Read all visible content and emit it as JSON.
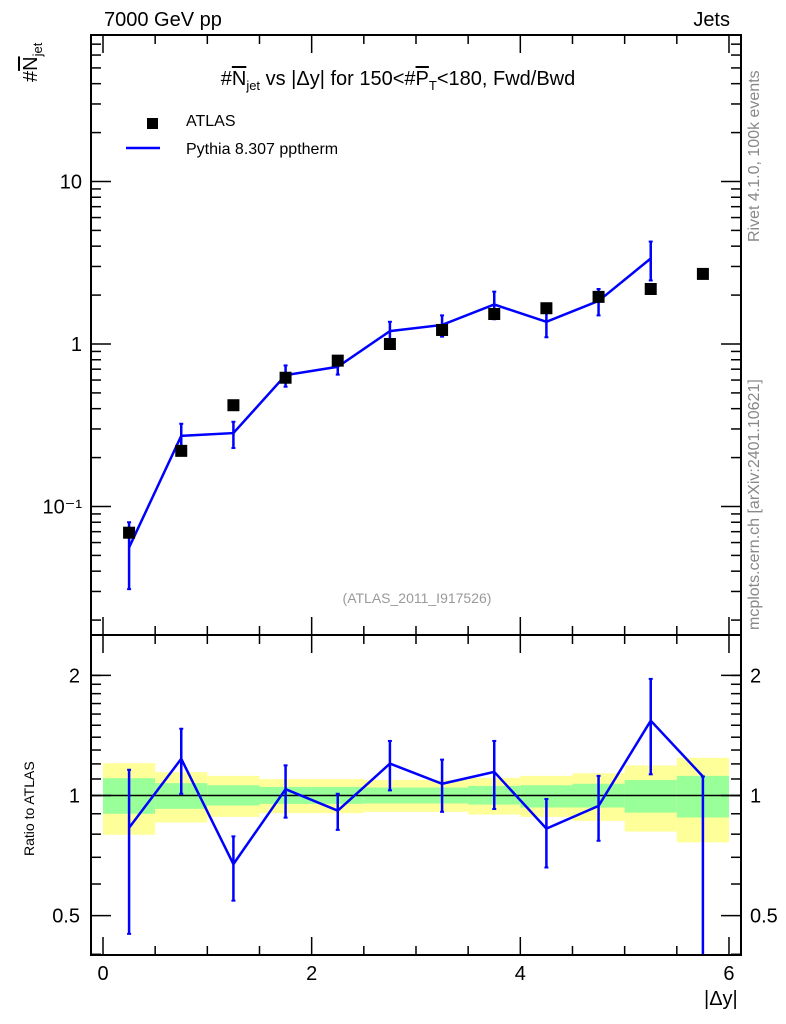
{
  "header": {
    "left": "7000 GeV pp",
    "right": "Jets"
  },
  "title_parts": [
    "#",
    "N",
    "jet",
    " vs |Δy| for 150<#",
    "P",
    "T",
    "<180, Fwd/Bwd"
  ],
  "ylabel_parts": [
    "#",
    "N",
    "jet"
  ],
  "side_text": {
    "rivet": "Rivet 4.1.0,  100k events",
    "mcplots": "mcplots.cern.ch [arXiv:2401.10621]"
  },
  "watermark": "(ATLAS_2011_I917526)",
  "legend": [
    {
      "label": "ATLAS",
      "marker": "square",
      "color": "#000000"
    },
    {
      "label": "Pythia 8.307 pptherm",
      "marker": "line",
      "color": "#0000ff"
    }
  ],
  "chart_data": [
    {
      "type": "scatter",
      "panel": "main",
      "yscale": "log",
      "xlim": [
        -0.12,
        6.12
      ],
      "ylim": [
        0.0163,
        80
      ],
      "x_ticks": [
        "0",
        "2",
        "4",
        "6"
      ],
      "y_ticks": [
        {
          "value": 0.1,
          "label": "10⁻¹"
        },
        {
          "value": 1,
          "label": "1"
        },
        {
          "value": 10,
          "label": "10"
        }
      ],
      "x": [
        0.25,
        0.75,
        1.25,
        1.75,
        2.25,
        2.75,
        3.25,
        3.75,
        4.25,
        4.75,
        5.25,
        5.75
      ],
      "series": [
        {
          "name": "ATLAS",
          "values": [
            0.069,
            0.22,
            0.42,
            0.62,
            0.79,
            1.0,
            1.22,
            1.53,
            1.66,
            1.95,
            2.18,
            2.7
          ]
        },
        {
          "name": "Pythia 8.307 pptherm",
          "values": [
            0.056,
            0.272,
            0.283,
            0.643,
            0.724,
            1.2,
            1.31,
            1.75,
            1.37,
            1.84,
            3.36,
            null
          ],
          "err_low": [
            0.031,
            0.222,
            0.229,
            0.546,
            0.648,
            1.03,
            1.11,
            1.42,
            1.1,
            1.5,
            2.46,
            null
          ],
          "err_high": [
            0.08,
            0.323,
            0.332,
            0.738,
            0.8,
            1.37,
            1.5,
            2.1,
            1.63,
            2.18,
            4.27,
            null
          ]
        }
      ]
    },
    {
      "type": "line",
      "panel": "ratio",
      "yscale": "log",
      "ylabel": "Ratio to ATLAS",
      "xlabel": "|Δy|",
      "ylim": [
        0.397,
        2.52
      ],
      "y_ticks": [
        {
          "value": 0.5,
          "label": "0.5"
        },
        {
          "value": 1,
          "label": "1"
        },
        {
          "value": 2,
          "label": "2"
        }
      ],
      "x": [
        0.25,
        0.75,
        1.25,
        1.75,
        2.25,
        2.75,
        3.25,
        3.75,
        4.25,
        4.75,
        5.25,
        5.75
      ],
      "ratio": [
        0.83,
        1.236,
        0.673,
        1.037,
        0.916,
        1.202,
        1.07,
        1.146,
        0.826,
        0.942,
        1.54,
        1.116
      ],
      "ratio_err_low": [
        0.45,
        1.01,
        0.545,
        0.88,
        0.82,
        1.03,
        0.91,
        0.925,
        0.66,
        0.77,
        1.13,
        0.3
      ],
      "ratio_err_high": [
        1.16,
        1.47,
        0.79,
        1.19,
        1.01,
        1.37,
        1.23,
        1.37,
        0.98,
        1.12,
        1.96,
        1.116
      ],
      "band_yellow_low": [
        0.797,
        0.856,
        0.884,
        0.903,
        0.903,
        0.91,
        0.91,
        0.896,
        0.884,
        0.864,
        0.812,
        0.763
      ],
      "band_yellow_high": [
        1.205,
        1.144,
        1.12,
        1.099,
        1.099,
        1.094,
        1.094,
        1.107,
        1.12,
        1.137,
        1.189,
        1.243
      ],
      "band_green_low": [
        0.9,
        0.926,
        0.944,
        0.953,
        0.953,
        0.955,
        0.955,
        0.949,
        0.933,
        0.933,
        0.906,
        0.881
      ],
      "band_green_high": [
        1.105,
        1.074,
        1.061,
        1.051,
        1.051,
        1.047,
        1.047,
        1.057,
        1.061,
        1.07,
        1.094,
        1.12
      ],
      "colors": {
        "yellow": "#ffff99",
        "green": "#99ff99",
        "mc": "#0000ff"
      }
    }
  ]
}
